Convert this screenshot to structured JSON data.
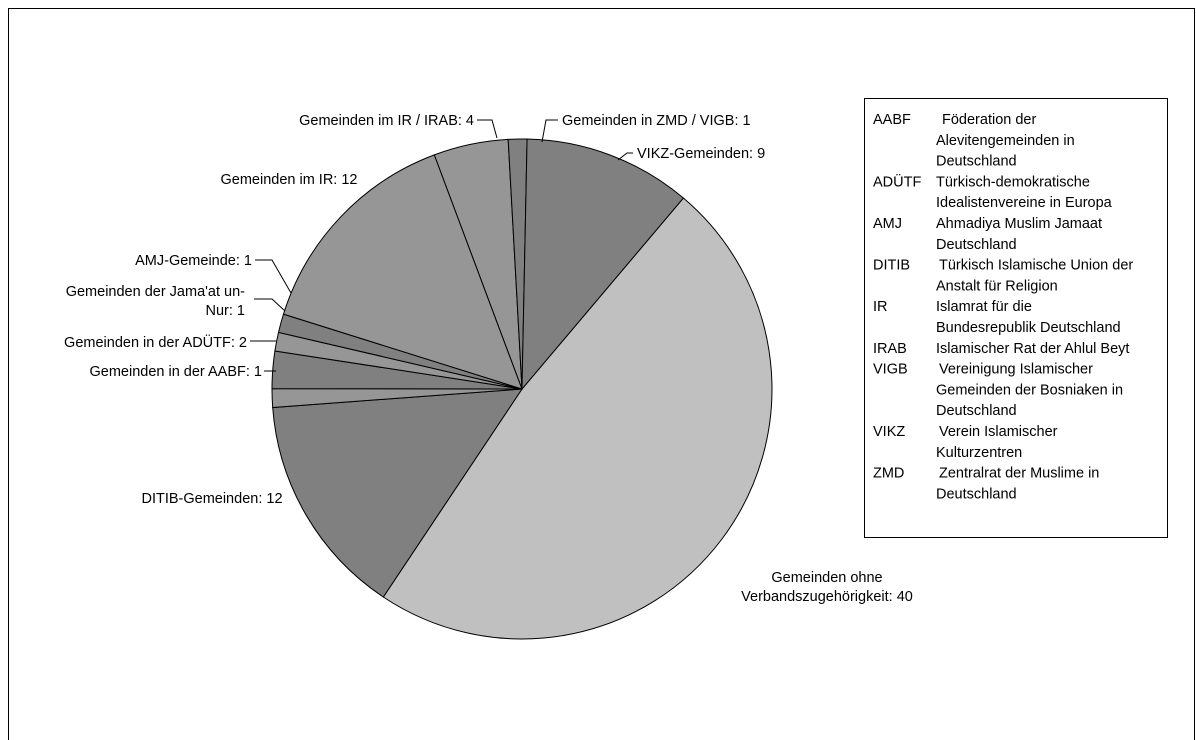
{
  "chart_data": {
    "type": "pie",
    "title": "",
    "slices": [
      {
        "label": "Gemeinden ohne Verbandszugehörigkeit: 40",
        "label_lines": [
          "Gemeinden ohne",
          "Verbandszugehörigkeit: 40"
        ],
        "value": 40,
        "color": "#c0c0c0"
      },
      {
        "label": "DITIB-Gemeinden: 12",
        "label_lines": [
          "DITIB-Gemeinden: 12"
        ],
        "value": 12,
        "color": "#808080"
      },
      {
        "label": "Gemeinden in der AABF: 1",
        "label_lines": [
          "Gemeinden in der AABF: 1"
        ],
        "value": 1,
        "color": "#969696"
      },
      {
        "label": "Gemeinden in der ADÜTF: 2",
        "label_lines": [
          "Gemeinden in der ADÜTF: 2"
        ],
        "value": 2,
        "color": "#808080"
      },
      {
        "label": "Gemeinden der Jama'at un-Nur: 1",
        "label_lines": [
          "Gemeinden der Jama'at un-",
          "Nur: 1"
        ],
        "value": 1,
        "color": "#969696"
      },
      {
        "label": "AMJ-Gemeinde: 1",
        "label_lines": [
          "AMJ-Gemeinde: 1"
        ],
        "value": 1,
        "color": "#808080"
      },
      {
        "label": "Gemeinden im IR: 12",
        "label_lines": [
          "Gemeinden im IR: 12"
        ],
        "value": 12,
        "color": "#969696"
      },
      {
        "label": "Gemeinden im IR / IRAB: 4",
        "label_lines": [
          "Gemeinden im IR / IRAB: 4"
        ],
        "value": 4,
        "color": "#969696"
      },
      {
        "label": "Gemeinden in ZMD / VIGB: 1",
        "label_lines": [
          "Gemeinden in ZMD / VIGB: 1"
        ],
        "value": 1,
        "color": "#808080"
      },
      {
        "label": "VIKZ-Gemeinden: 9",
        "label_lines": [
          "VIKZ-Gemeinden: 9"
        ],
        "value": 9,
        "color": "#808080"
      }
    ],
    "legend_position": "right",
    "legend": [
      {
        "abbr": "AABF",
        "lines": [
          "Föderation der",
          "Alevitengemeinden in",
          "Deutschland"
        ]
      },
      {
        "abbr": "ADÜTF",
        "lines": [
          "Türkisch-demokratische",
          "Idealistenvereine in Europa"
        ]
      },
      {
        "abbr": "AMJ",
        "lines": [
          "Ahmadiya Muslim Jamaat",
          "Deutschland"
        ]
      },
      {
        "abbr": "DITIB",
        "lines": [
          "Türkisch Islamische Union der",
          "Anstalt für Religion"
        ]
      },
      {
        "abbr": "IR",
        "lines": [
          "Islamrat für die",
          "Bundesrepublik Deutschland"
        ]
      },
      {
        "abbr": "IRAB",
        "lines": [
          "Islamischer Rat der Ahlul Beyt"
        ]
      },
      {
        "abbr": "VIGB",
        "lines": [
          "Vereinigung Islamischer",
          "Gemeinden der Bosniaken in",
          "Deutschland"
        ]
      },
      {
        "abbr": "VIKZ",
        "lines": [
          "Verein Islamischer",
          "Kulturzentren"
        ]
      },
      {
        "abbr": "ZMD",
        "lines": [
          "Zentralrat der Muslime in",
          "Deutschland"
        ]
      }
    ]
  }
}
